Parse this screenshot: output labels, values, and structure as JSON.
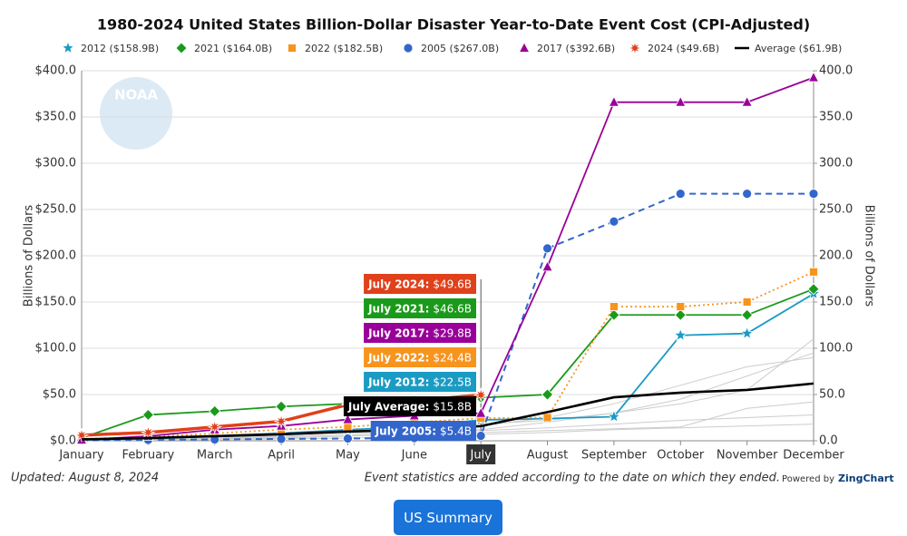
{
  "chart_data": {
    "type": "line",
    "title": "1980-2024 United States Billion-Dollar Disaster Year-to-Date Event Cost (CPI-Adjusted)",
    "logo_text": "NOAA",
    "y_label": "Billions of Dollars",
    "y2_label": "Billions of Dollars",
    "categories": [
      "January",
      "February",
      "March",
      "April",
      "May",
      "June",
      "July",
      "August",
      "September",
      "October",
      "November",
      "December"
    ],
    "highlight_category": 6,
    "ylim": [
      0,
      400
    ],
    "yticks": [
      {
        "value": 0,
        "label": "$0.0"
      },
      {
        "value": 50,
        "label": "$50.0"
      },
      {
        "value": 100,
        "label": "$100.0"
      },
      {
        "value": 150,
        "label": "$150.0"
      },
      {
        "value": 200,
        "label": "$200.0"
      },
      {
        "value": 250,
        "label": "$250.0"
      },
      {
        "value": 300,
        "label": "$300.0"
      },
      {
        "value": 350,
        "label": "$350.0"
      },
      {
        "value": 400,
        "label": "$400.0"
      }
    ],
    "y2lim": [
      0,
      400
    ],
    "y2ticks": [
      {
        "value": 0,
        "label": "0.0"
      },
      {
        "value": 50,
        "label": "50.0"
      },
      {
        "value": 100,
        "label": "100.0"
      },
      {
        "value": 150,
        "label": "150.0"
      },
      {
        "value": 200,
        "label": "200.0"
      },
      {
        "value": 250,
        "label": "250.0"
      },
      {
        "value": 300,
        "label": "300.0"
      },
      {
        "value": 350,
        "label": "350.0"
      },
      {
        "value": 400,
        "label": "400.0"
      }
    ],
    "grid": true,
    "background_color": "#cccccc",
    "background_series": [
      [
        0.5,
        1,
        3,
        5,
        8,
        10,
        12,
        20,
        30,
        45,
        70,
        95
      ],
      [
        0.3,
        0.8,
        2,
        4,
        6,
        9,
        11,
        14,
        18,
        22,
        25,
        28
      ],
      [
        1,
        2,
        4,
        6,
        9,
        13,
        16,
        25,
        40,
        60,
        80,
        90
      ],
      [
        0.2,
        0.5,
        1,
        2,
        3,
        5,
        7,
        9,
        12,
        14,
        16,
        18
      ],
      [
        1,
        3,
        6,
        9,
        12,
        15,
        18,
        22,
        30,
        40,
        55,
        110
      ],
      [
        0.4,
        1,
        2,
        3,
        5,
        7,
        9,
        11,
        13,
        15,
        35,
        42
      ]
    ],
    "series": [
      {
        "name": "2012 ($158.9B)",
        "color": "#1a9bc4",
        "marker": "star",
        "line": "solid",
        "values": [
          1,
          2,
          5,
          8,
          12,
          15,
          22.5,
          24,
          26,
          114,
          116,
          158.9
        ]
      },
      {
        "name": "2021 ($164.0B)",
        "color": "#1a9a1a",
        "marker": "diamond",
        "line": "solid",
        "values": [
          3,
          28,
          32,
          37,
          40,
          44,
          46.6,
          50,
          136,
          136,
          136,
          164.0
        ]
      },
      {
        "name": "2022 ($182.5B)",
        "color": "#f7941d",
        "marker": "square",
        "line": "dotted",
        "values": [
          2,
          4,
          8,
          12,
          15,
          20,
          24.4,
          25,
          145,
          145,
          150,
          182.5
        ]
      },
      {
        "name": "2005 ($267.0B)",
        "color": "#3366cc",
        "marker": "circle",
        "line": "dashed",
        "values": [
          0.5,
          1,
          1.5,
          2,
          2.5,
          3,
          5.4,
          208,
          237,
          267,
          267,
          267.0
        ]
      },
      {
        "name": "2017 ($392.6B)",
        "color": "#990099",
        "marker": "triangle",
        "line": "solid",
        "values": [
          1,
          5,
          12,
          16,
          23,
          27,
          29.8,
          188,
          366,
          366,
          366,
          392.6
        ]
      },
      {
        "name": "2024 ($49.6B)",
        "color": "#e0401a",
        "marker": "burst",
        "line": "thick",
        "values": [
          6,
          9,
          15,
          21,
          39,
          43,
          49.6,
          null,
          null,
          null,
          null,
          null
        ]
      },
      {
        "name": "Average ($61.9B)",
        "color": "#000000",
        "marker": "none",
        "line": "bold",
        "values": [
          1.5,
          3,
          5,
          7,
          10,
          12,
          15.8,
          31,
          47,
          52,
          55,
          61.9
        ]
      }
    ],
    "tooltips": [
      {
        "title": "July 2024:",
        "text": "$49.6B",
        "color": "#e0401a"
      },
      {
        "title": "July 2021:",
        "text": "$46.6B",
        "color": "#1a9a1a"
      },
      {
        "title": "July 2017:",
        "text": "$29.8B",
        "color": "#990099"
      },
      {
        "title": "July 2022:",
        "text": "$24.4B",
        "color": "#f7941d"
      },
      {
        "title": "July 2012:",
        "text": "$22.5B",
        "color": "#1a9bc4"
      },
      {
        "title": "July Average:",
        "text": "$15.8B",
        "color": "#000000"
      },
      {
        "title": "July 2005:",
        "text": "$5.4B",
        "color": "#3366cc"
      }
    ],
    "footer_left": "Updated: August 8, 2024",
    "footer_right": "Event statistics are added according to the date on which they ended.",
    "powered_prefix": "Powered by",
    "powered_brand": "ZingChart",
    "button": "US Summary"
  }
}
